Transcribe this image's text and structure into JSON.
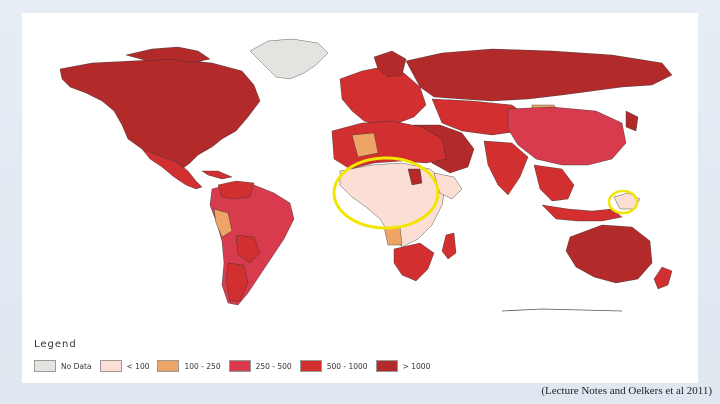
{
  "legend": {
    "title": "Legend",
    "items": [
      {
        "label": "No Data",
        "color": "#e3e3e0"
      },
      {
        "label": "< 100",
        "color": "#fbded4"
      },
      {
        "label": "100 - 250",
        "color": "#eea466"
      },
      {
        "label": "250 - 500",
        "color": "#d73b4d"
      },
      {
        "label": "500 - 1000",
        "color": "#d23030"
      },
      {
        "label": "> 1000",
        "color": "#b22a2a"
      }
    ]
  },
  "citation": "(Lecture Notes and Oelkers et al 2011)",
  "highlights": {
    "color": "#f2e600"
  }
}
